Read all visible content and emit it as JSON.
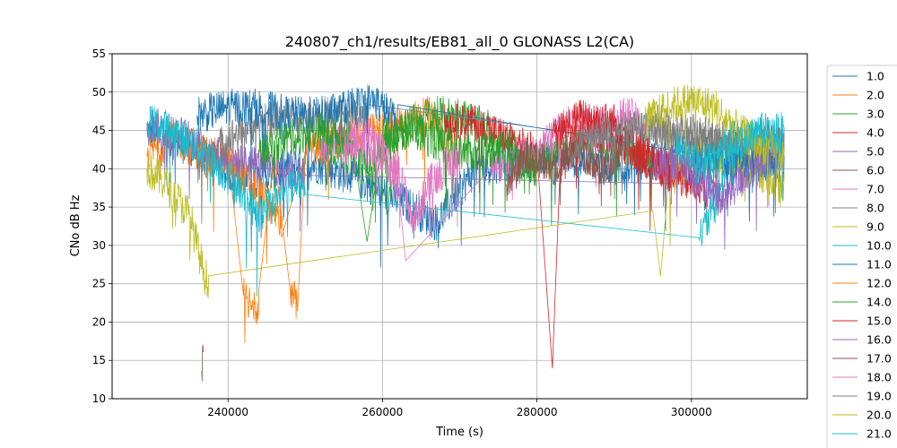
{
  "chart_data": {
    "type": "line",
    "title": "240807_ch1/results/EB81_all_0 GLONASS L2(CA)",
    "xlabel": "Time (s)",
    "ylabel": "CNo dB Hz",
    "xlim": [
      225000,
      315000
    ],
    "ylim": [
      10,
      55
    ],
    "x_ticks": [
      240000,
      260000,
      280000,
      300000
    ],
    "x_tick_labels": [
      "240000",
      "260000",
      "280000",
      "300000"
    ],
    "y_ticks": [
      10,
      15,
      20,
      25,
      30,
      35,
      40,
      45,
      50,
      55
    ],
    "y_tick_labels": [
      "10",
      "15",
      "20",
      "25",
      "30",
      "35",
      "40",
      "45",
      "50",
      "55"
    ],
    "grid": true,
    "legend_position": "right (outside plot, clipped)",
    "series": [
      {
        "name": "1.0",
        "color": "#1f77b4",
        "points": [
          [
            229500,
            45
          ],
          [
            237000,
            42
          ],
          [
            242000,
            38
          ],
          [
            250000,
            41
          ],
          [
            256000,
            39
          ],
          [
            262000,
            36
          ],
          [
            267000,
            33
          ],
          [
            272000,
            40
          ],
          [
            282000,
            42
          ],
          [
            290000,
            40
          ],
          [
            300000,
            42
          ],
          [
            305000,
            43
          ],
          [
            310000,
            41
          ],
          [
            312000,
            40
          ]
        ]
      },
      {
        "name": "2.0",
        "color": "#ff7f0e",
        "points": [
          [
            229500,
            42
          ],
          [
            233000,
            44
          ],
          [
            237000,
            42
          ],
          [
            240000,
            41
          ],
          [
            244000,
            37
          ],
          [
            247000,
            33
          ],
          [
            250000,
            42
          ],
          [
            255000,
            44
          ],
          [
            260000,
            45
          ],
          [
            263000,
            46
          ],
          [
            266000,
            47
          ],
          [
            268000,
            44
          ],
          [
            270000,
            42
          ]
        ]
      },
      {
        "name": "3.0",
        "color": "#2ca02c",
        "points": [
          [
            252000,
            44
          ],
          [
            258000,
            40
          ],
          [
            262000,
            45
          ],
          [
            266000,
            47
          ],
          [
            270000,
            47
          ],
          [
            274000,
            45
          ],
          [
            278000,
            40
          ],
          [
            282000,
            42
          ],
          [
            286000,
            44
          ],
          [
            290000,
            43
          ],
          [
            295000,
            42
          ]
        ]
      },
      {
        "name": "4.0",
        "color": "#d62728",
        "points": [
          [
            268000,
            46
          ],
          [
            272000,
            46
          ],
          [
            276000,
            44
          ],
          [
            280000,
            42
          ],
          [
            282000,
            14
          ],
          [
            283000,
            40
          ],
          [
            286000,
            45
          ],
          [
            290000,
            44
          ],
          [
            294000,
            41
          ],
          [
            298000,
            40
          ],
          [
            302000,
            37
          ]
        ]
      },
      {
        "name": "5.0",
        "color": "#9467bd",
        "points": [
          [
            229500,
            46
          ],
          [
            232000,
            45
          ],
          [
            235000,
            44
          ],
          [
            238000,
            42
          ],
          [
            242000,
            41
          ],
          [
            246000,
            40
          ],
          [
            250000,
            39
          ],
          [
            300000,
            38
          ],
          [
            302000,
            37
          ],
          [
            304000,
            36
          ],
          [
            306000,
            40
          ],
          [
            310000,
            43
          ],
          [
            312000,
            44
          ]
        ]
      },
      {
        "name": "6.0",
        "color": "#8c564b",
        "points": [
          [
            236600,
            13.6
          ],
          [
            236800,
            18.2
          ]
        ]
      },
      {
        "name": "7.0",
        "color": "#e377c2",
        "points": [
          [
            252000,
            42
          ],
          [
            256000,
            44
          ],
          [
            260000,
            42
          ],
          [
            262000,
            38
          ],
          [
            263000,
            28
          ],
          [
            274000,
            40
          ],
          [
            280000,
            42
          ],
          [
            284000,
            46
          ],
          [
            288000,
            46
          ],
          [
            292000,
            47
          ],
          [
            294000,
            45
          ]
        ]
      },
      {
        "name": "8.0",
        "color": "#7f7f7f",
        "points": [
          [
            236000,
            40
          ],
          [
            240000,
            44
          ],
          [
            244000,
            46
          ],
          [
            248000,
            47
          ],
          [
            252000,
            47
          ],
          [
            256000,
            47
          ],
          [
            258000,
            46
          ],
          [
            290000,
            44
          ],
          [
            295000,
            45
          ],
          [
            300000,
            44
          ],
          [
            305000,
            43
          ],
          [
            310000,
            42
          ]
        ]
      },
      {
        "name": "9.0",
        "color": "#bcbd22",
        "points": [
          [
            229500,
            40
          ],
          [
            232000,
            38
          ],
          [
            235000,
            34
          ],
          [
            237000,
            26
          ],
          [
            237500,
            25.5
          ],
          [
            295000,
            34.5
          ],
          [
            296000,
            26
          ],
          [
            297000,
            38
          ],
          [
            300000,
            42
          ],
          [
            305000,
            41
          ],
          [
            310000,
            39
          ],
          [
            312000,
            37
          ]
        ]
      },
      {
        "name": "10.0",
        "color": "#17becf",
        "points": [
          [
            229500,
            46
          ],
          [
            233000,
            45
          ],
          [
            237000,
            42
          ],
          [
            241000,
            38
          ],
          [
            244000,
            34
          ],
          [
            247000,
            37
          ],
          [
            250000,
            39
          ],
          [
            301000,
            31
          ],
          [
            303000,
            35
          ],
          [
            305000,
            42
          ],
          [
            308000,
            44
          ],
          [
            312000,
            45
          ]
        ]
      },
      {
        "name": "11.0",
        "color": "#1f77b4",
        "points": [
          [
            236000,
            47
          ],
          [
            240000,
            48
          ],
          [
            244000,
            48
          ],
          [
            248000,
            47
          ],
          [
            252000,
            47
          ],
          [
            256000,
            48
          ],
          [
            259000,
            49
          ],
          [
            262000,
            46
          ],
          [
            300000,
            42
          ],
          [
            306000,
            40
          ],
          [
            310000,
            41
          ],
          [
            312000,
            42
          ]
        ]
      },
      {
        "name": "12.0",
        "color": "#ff7f0e",
        "points": [
          [
            240000,
            42
          ],
          [
            242000,
            23.5
          ],
          [
            244000,
            22
          ],
          [
            246000,
            42
          ],
          [
            248000,
            24.5
          ],
          [
            249000,
            22
          ],
          [
            250000,
            42
          ]
        ]
      },
      {
        "name": "14.0",
        "color": "#2ca02c",
        "points": [
          [
            244000,
            42
          ],
          [
            248000,
            44
          ],
          [
            252000,
            45
          ],
          [
            256000,
            44
          ],
          [
            258000,
            30.5
          ],
          [
            260000,
            44
          ],
          [
            264000,
            45
          ],
          [
            268000,
            43
          ],
          [
            272000,
            42
          ],
          [
            276000,
            43
          ],
          [
            280000,
            40
          ]
        ]
      },
      {
        "name": "15.0",
        "color": "#d62728",
        "points": [
          [
            282000,
            44
          ],
          [
            286000,
            47
          ],
          [
            290000,
            46
          ],
          [
            292000,
            44
          ],
          [
            294000,
            42
          ],
          [
            296000,
            40
          ],
          [
            300000,
            38
          ]
        ]
      },
      {
        "name": "16.0",
        "color": "#9467bd",
        "points": [
          [
            295000,
            40
          ],
          [
            298000,
            41
          ],
          [
            301000,
            40
          ],
          [
            304000,
            36
          ],
          [
            306000,
            38
          ],
          [
            309000,
            41
          ],
          [
            312000,
            43
          ]
        ]
      },
      {
        "name": "17.0",
        "color": "#8c564b",
        "points": [
          [
            276000,
            38
          ],
          [
            279000,
            42
          ],
          [
            282000,
            40
          ],
          [
            285000,
            43
          ],
          [
            288000,
            40
          ],
          [
            291000,
            42
          ]
        ]
      },
      {
        "name": "18.0",
        "color": "#e377c2",
        "points": [
          [
            255000,
            43
          ],
          [
            258000,
            45
          ],
          [
            262000,
            40
          ],
          [
            264000,
            33
          ],
          [
            266000,
            38
          ],
          [
            270000,
            42
          ]
        ]
      },
      {
        "name": "19.0",
        "color": "#7f7f7f",
        "points": [
          [
            284000,
            42
          ],
          [
            288000,
            45
          ],
          [
            292000,
            45
          ],
          [
            296000,
            46
          ],
          [
            300000,
            45
          ],
          [
            304000,
            44
          ],
          [
            308000,
            44
          ],
          [
            312000,
            43
          ]
        ]
      },
      {
        "name": "20.0",
        "color": "#bcbd22",
        "points": [
          [
            294000,
            46
          ],
          [
            297000,
            48
          ],
          [
            300000,
            49
          ],
          [
            303000,
            48
          ],
          [
            306000,
            45
          ],
          [
            309000,
            43
          ],
          [
            312000,
            42
          ]
        ]
      },
      {
        "name": "21.0",
        "color": "#17becf",
        "points": [
          [
            298000,
            43
          ],
          [
            301000,
            40
          ],
          [
            303000,
            42
          ],
          [
            306000,
            44
          ],
          [
            309000,
            45
          ],
          [
            312000,
            44
          ]
        ]
      }
    ]
  }
}
